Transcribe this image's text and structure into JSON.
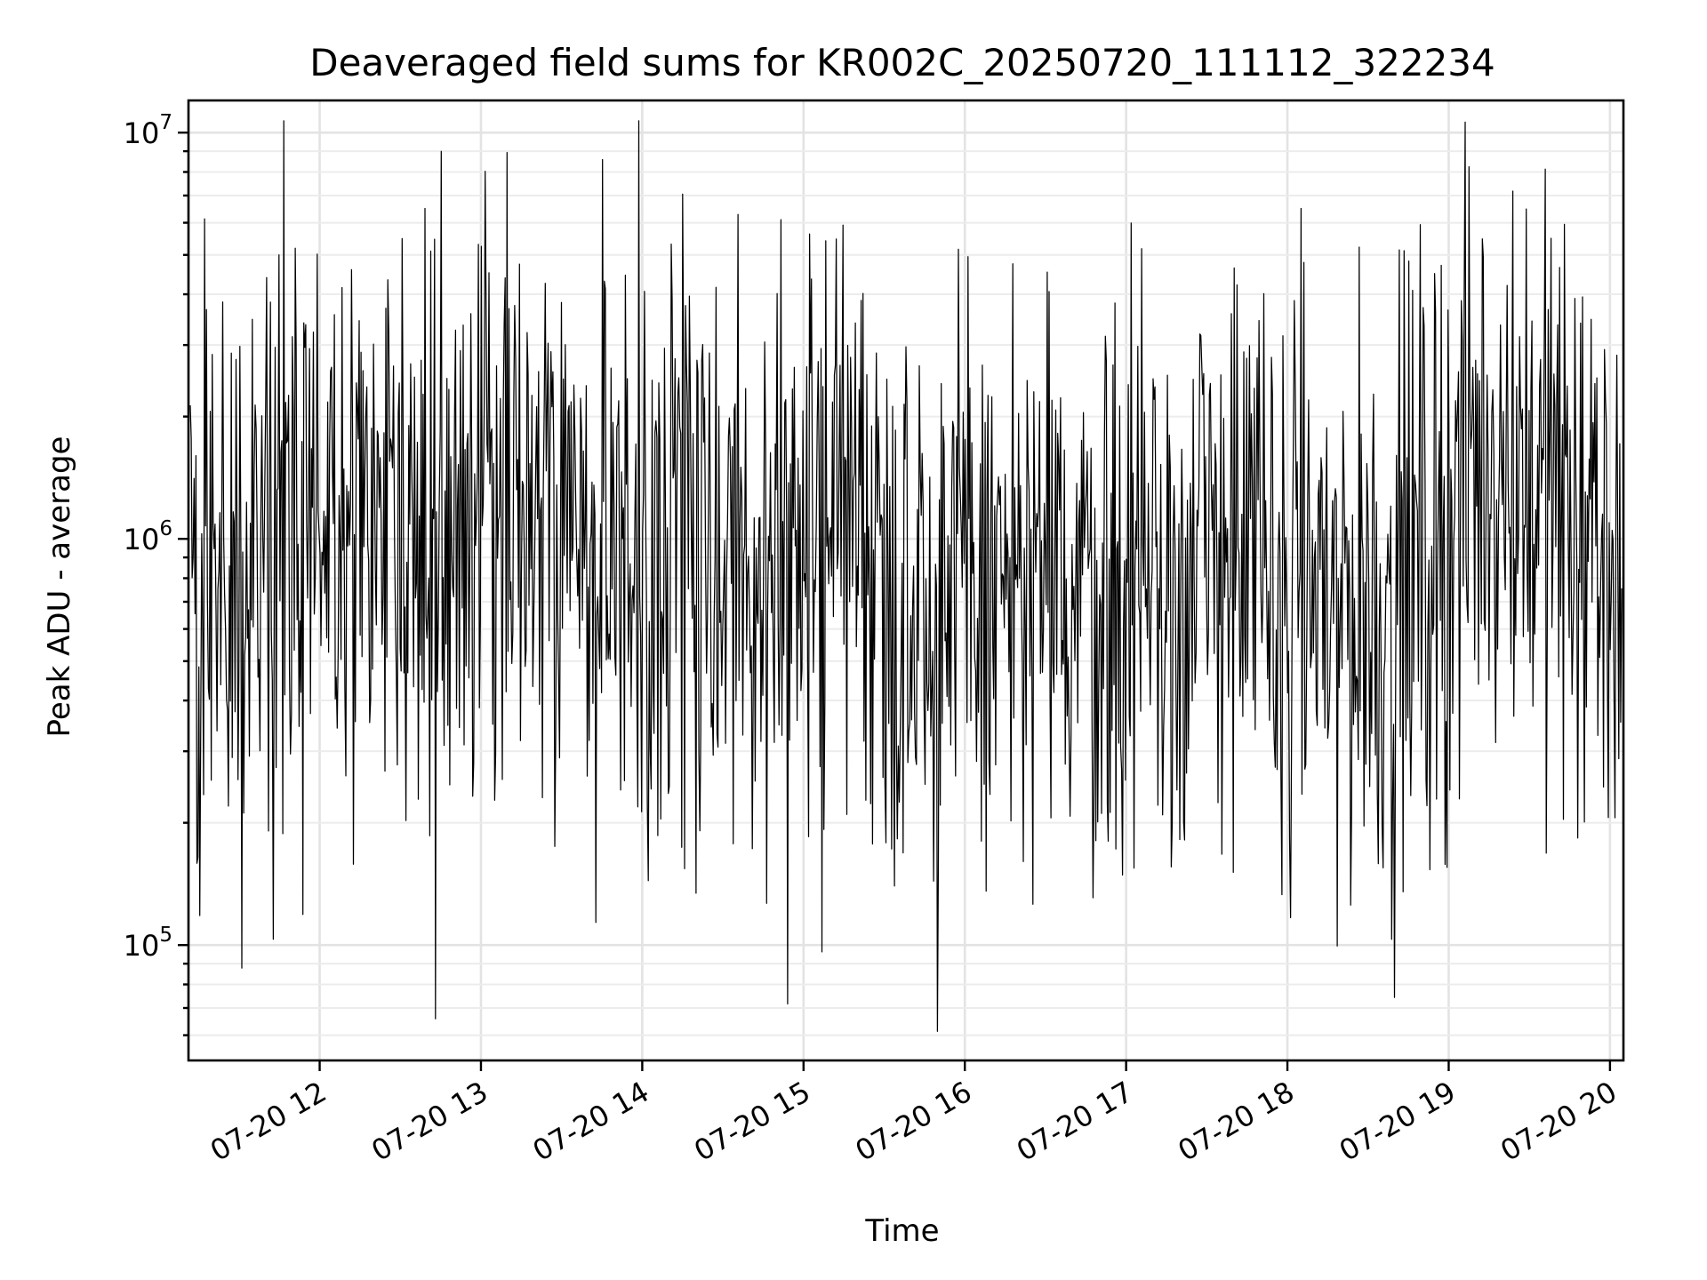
{
  "chart_data": {
    "type": "line",
    "title": "Deaveraged field sums for KR002C_20250720_111112_322234",
    "xlabel": "Time",
    "ylabel": "Peak ADU - average",
    "yscale": "log",
    "ylim": [
      52000,
      12000000
    ],
    "xlim": [
      "2025-07-20T11:11:12",
      "2025-07-20T20:05:00"
    ],
    "grid": true,
    "legend": "none",
    "line_color": "#000000",
    "x_ticks": [
      {
        "t": "2025-07-20T12:00:00",
        "label": "07-20 12"
      },
      {
        "t": "2025-07-20T13:00:00",
        "label": "07-20 13"
      },
      {
        "t": "2025-07-20T14:00:00",
        "label": "07-20 14"
      },
      {
        "t": "2025-07-20T15:00:00",
        "label": "07-20 15"
      },
      {
        "t": "2025-07-20T16:00:00",
        "label": "07-20 16"
      },
      {
        "t": "2025-07-20T17:00:00",
        "label": "07-20 17"
      },
      {
        "t": "2025-07-20T18:00:00",
        "label": "07-20 18"
      },
      {
        "t": "2025-07-20T19:00:00",
        "label": "07-20 19"
      },
      {
        "t": "2025-07-20T20:00:00",
        "label": "07-20 20"
      }
    ],
    "y_ticks": [
      {
        "value": 100000,
        "base": "10",
        "exp": "5"
      },
      {
        "value": 1000000,
        "base": "10",
        "exp": "6"
      },
      {
        "value": 10000000,
        "base": "10",
        "exp": "7"
      }
    ],
    "series": [
      {
        "x": [
          "2025-07-20T11:11:12",
          "2025-07-20T11:20:00",
          "2025-07-20T11:30:00",
          "2025-07-20T11:40:00",
          "2025-07-20T11:50:00",
          "2025-07-20T12:00:00",
          "2025-07-20T12:10:00",
          "2025-07-20T12:20:00",
          "2025-07-20T12:30:00",
          "2025-07-20T12:40:00",
          "2025-07-20T12:50:00",
          "2025-07-20T13:00:00",
          "2025-07-20T13:10:00",
          "2025-07-20T13:20:00",
          "2025-07-20T13:30:00",
          "2025-07-20T13:40:00",
          "2025-07-20T13:50:00",
          "2025-07-20T14:00:00",
          "2025-07-20T14:10:00",
          "2025-07-20T14:20:00",
          "2025-07-20T14:30:00",
          "2025-07-20T14:40:00",
          "2025-07-20T14:50:00",
          "2025-07-20T15:00:00",
          "2025-07-20T15:10:00",
          "2025-07-20T15:20:00",
          "2025-07-20T15:30:00",
          "2025-07-20T15:40:00",
          "2025-07-20T15:50:00",
          "2025-07-20T16:00:00",
          "2025-07-20T16:10:00",
          "2025-07-20T16:20:00",
          "2025-07-20T16:30:00",
          "2025-07-20T16:40:00",
          "2025-07-20T16:50:00",
          "2025-07-20T17:00:00",
          "2025-07-20T17:10:00",
          "2025-07-20T17:20:00",
          "2025-07-20T17:30:00",
          "2025-07-20T17:40:00",
          "2025-07-20T17:50:00",
          "2025-07-20T18:00:00",
          "2025-07-20T18:10:00",
          "2025-07-20T18:20:00",
          "2025-07-20T18:30:00",
          "2025-07-20T18:40:00",
          "2025-07-20T18:50:00",
          "2025-07-20T19:00:00",
          "2025-07-20T19:10:00",
          "2025-07-20T19:20:00",
          "2025-07-20T19:30:00",
          "2025-07-20T19:40:00",
          "2025-07-20T19:50:00",
          "2025-07-20T20:00:00",
          "2025-07-20T20:05:00"
        ],
        "y": [
          700000,
          800000,
          750000,
          1000000,
          1100000,
          1150000,
          1200000,
          1250000,
          1200000,
          1150000,
          1100000,
          1100000,
          1100000,
          1050000,
          1100000,
          1100000,
          1000000,
          950000,
          950000,
          900000,
          900000,
          850000,
          850000,
          900000,
          1300000,
          1100000,
          850000,
          800000,
          750000,
          750000,
          750000,
          750000,
          750000,
          750000,
          750000,
          800000,
          750000,
          700000,
          900000,
          1050000,
          850000,
          700000,
          800000,
          700000,
          700000,
          650000,
          900000,
          1150000,
          1500000,
          1700000,
          1500000,
          1300000,
          900000,
          850000,
          1000000
        ]
      }
    ]
  }
}
